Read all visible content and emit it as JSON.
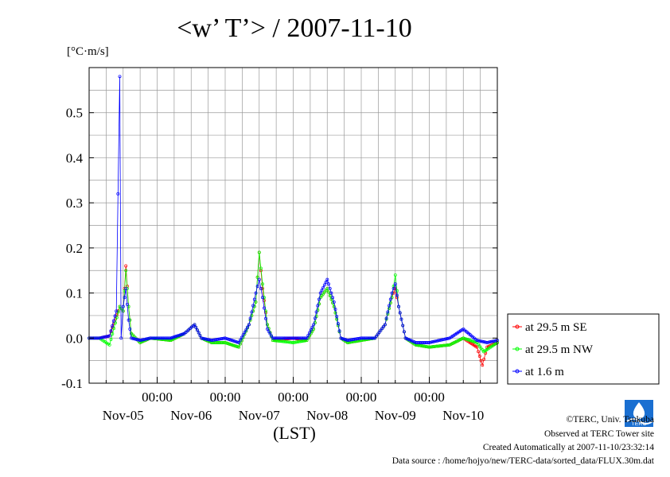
{
  "chart_data": {
    "type": "line",
    "title": "<w’ T’> / 2007-11-10",
    "ylabel": "[°C·m/s]",
    "xlabel": "(LST)",
    "ylim": [
      -0.1,
      0.6
    ],
    "yticks": [
      -0.1,
      0.0,
      0.1,
      0.2,
      0.3,
      0.4,
      0.5
    ],
    "ytick_labels": [
      "-0.1",
      "0.0",
      "0.1",
      "0.2",
      "0.3",
      "0.4",
      "0.5"
    ],
    "xlim_days": [
      0,
      6
    ],
    "xtick_time_label": "00:00",
    "xtick_dates": [
      "Nov-05",
      "Nov-06",
      "Nov-07",
      "Nov-08",
      "Nov-09",
      "Nov-10"
    ],
    "grid": true,
    "legend_position": "right",
    "series": [
      {
        "name": "at 29.5 m SE",
        "color": "#ff0000",
        "points": [
          [
            0.0,
            0.0
          ],
          [
            0.15,
            0.0
          ],
          [
            0.3,
            0.005
          ],
          [
            0.45,
            0.07
          ],
          [
            0.5,
            0.06
          ],
          [
            0.54,
            0.16
          ],
          [
            0.58,
            0.07
          ],
          [
            0.62,
            0.01
          ],
          [
            0.75,
            -0.01
          ],
          [
            0.9,
            0.0
          ],
          [
            1.2,
            -0.005
          ],
          [
            1.4,
            0.01
          ],
          [
            1.55,
            0.03
          ],
          [
            1.65,
            0.0
          ],
          [
            1.8,
            -0.01
          ],
          [
            2.0,
            -0.01
          ],
          [
            2.2,
            -0.02
          ],
          [
            2.35,
            0.03
          ],
          [
            2.45,
            0.08
          ],
          [
            2.5,
            0.19
          ],
          [
            2.55,
            0.11
          ],
          [
            2.62,
            0.03
          ],
          [
            2.7,
            -0.005
          ],
          [
            3.0,
            0.0
          ],
          [
            3.2,
            -0.005
          ],
          [
            3.3,
            0.02
          ],
          [
            3.4,
            0.09
          ],
          [
            3.5,
            0.11
          ],
          [
            3.6,
            0.07
          ],
          [
            3.7,
            0.0
          ],
          [
            3.8,
            -0.01
          ],
          [
            4.0,
            -0.005
          ],
          [
            4.2,
            0.0
          ],
          [
            4.35,
            0.03
          ],
          [
            4.45,
            0.09
          ],
          [
            4.5,
            0.11
          ],
          [
            4.55,
            0.07
          ],
          [
            4.65,
            0.0
          ],
          [
            4.8,
            -0.015
          ],
          [
            5.0,
            -0.02
          ],
          [
            5.3,
            -0.015
          ],
          [
            5.5,
            0.0
          ],
          [
            5.7,
            -0.02
          ],
          [
            5.78,
            -0.06
          ],
          [
            5.85,
            -0.02
          ],
          [
            6.0,
            -0.01
          ]
        ]
      },
      {
        "name": "at 29.5 m NW",
        "color": "#00ff00",
        "points": [
          [
            0.0,
            0.0
          ],
          [
            0.15,
            0.0
          ],
          [
            0.3,
            -0.015
          ],
          [
            0.45,
            0.07
          ],
          [
            0.5,
            0.06
          ],
          [
            0.54,
            0.15
          ],
          [
            0.58,
            0.07
          ],
          [
            0.62,
            0.01
          ],
          [
            0.75,
            -0.01
          ],
          [
            0.9,
            0.0
          ],
          [
            1.2,
            -0.005
          ],
          [
            1.4,
            0.01
          ],
          [
            1.55,
            0.03
          ],
          [
            1.65,
            0.0
          ],
          [
            1.8,
            -0.01
          ],
          [
            2.0,
            -0.01
          ],
          [
            2.2,
            -0.02
          ],
          [
            2.35,
            0.03
          ],
          [
            2.45,
            0.08
          ],
          [
            2.5,
            0.19
          ],
          [
            2.55,
            0.12
          ],
          [
            2.62,
            0.03
          ],
          [
            2.7,
            -0.005
          ],
          [
            3.0,
            -0.01
          ],
          [
            3.2,
            -0.005
          ],
          [
            3.3,
            0.02
          ],
          [
            3.4,
            0.09
          ],
          [
            3.5,
            0.11
          ],
          [
            3.6,
            0.07
          ],
          [
            3.7,
            0.0
          ],
          [
            3.8,
            -0.01
          ],
          [
            4.0,
            -0.005
          ],
          [
            4.2,
            0.0
          ],
          [
            4.35,
            0.03
          ],
          [
            4.45,
            0.09
          ],
          [
            4.5,
            0.14
          ],
          [
            4.55,
            0.07
          ],
          [
            4.65,
            0.0
          ],
          [
            4.8,
            -0.015
          ],
          [
            5.0,
            -0.02
          ],
          [
            5.3,
            -0.015
          ],
          [
            5.5,
            0.0
          ],
          [
            5.7,
            -0.01
          ],
          [
            5.8,
            -0.03
          ],
          [
            5.9,
            -0.02
          ],
          [
            6.0,
            -0.01
          ]
        ]
      },
      {
        "name": "at 1.6 m",
        "color": "#0000ff",
        "points": [
          [
            0.0,
            0.0
          ],
          [
            0.15,
            0.0
          ],
          [
            0.3,
            0.005
          ],
          [
            0.4,
            0.06
          ],
          [
            0.45,
            0.58
          ],
          [
            0.47,
            0.0
          ],
          [
            0.5,
            0.07
          ],
          [
            0.54,
            0.11
          ],
          [
            0.58,
            0.04
          ],
          [
            0.62,
            0.0
          ],
          [
            0.75,
            -0.005
          ],
          [
            0.9,
            0.0
          ],
          [
            1.2,
            0.0
          ],
          [
            1.4,
            0.01
          ],
          [
            1.55,
            0.03
          ],
          [
            1.65,
            0.0
          ],
          [
            1.8,
            -0.005
          ],
          [
            2.0,
            0.0
          ],
          [
            2.2,
            -0.01
          ],
          [
            2.35,
            0.03
          ],
          [
            2.45,
            0.1
          ],
          [
            2.5,
            0.13
          ],
          [
            2.55,
            0.09
          ],
          [
            2.62,
            0.02
          ],
          [
            2.7,
            0.0
          ],
          [
            3.0,
            0.0
          ],
          [
            3.2,
            0.0
          ],
          [
            3.3,
            0.03
          ],
          [
            3.4,
            0.1
          ],
          [
            3.5,
            0.13
          ],
          [
            3.6,
            0.08
          ],
          [
            3.7,
            0.0
          ],
          [
            3.8,
            -0.005
          ],
          [
            4.0,
            0.0
          ],
          [
            4.2,
            0.0
          ],
          [
            4.35,
            0.03
          ],
          [
            4.45,
            0.1
          ],
          [
            4.5,
            0.12
          ],
          [
            4.55,
            0.07
          ],
          [
            4.65,
            0.0
          ],
          [
            4.8,
            -0.01
          ],
          [
            5.0,
            -0.01
          ],
          [
            5.3,
            0.0
          ],
          [
            5.5,
            0.02
          ],
          [
            5.7,
            -0.005
          ],
          [
            5.85,
            -0.01
          ],
          [
            6.0,
            -0.005
          ]
        ]
      }
    ]
  },
  "footer": {
    "copyright": "©TERC, Univ. Tsukuba",
    "observed": "Observed at TERC Tower site",
    "created": "Created Automatically at 2007-11-10/23:32:14",
    "source": "Data source : /home/hojyo/new/TERC-data/sorted_data/FLUX.30m.dat",
    "logo_text": "TERC"
  }
}
